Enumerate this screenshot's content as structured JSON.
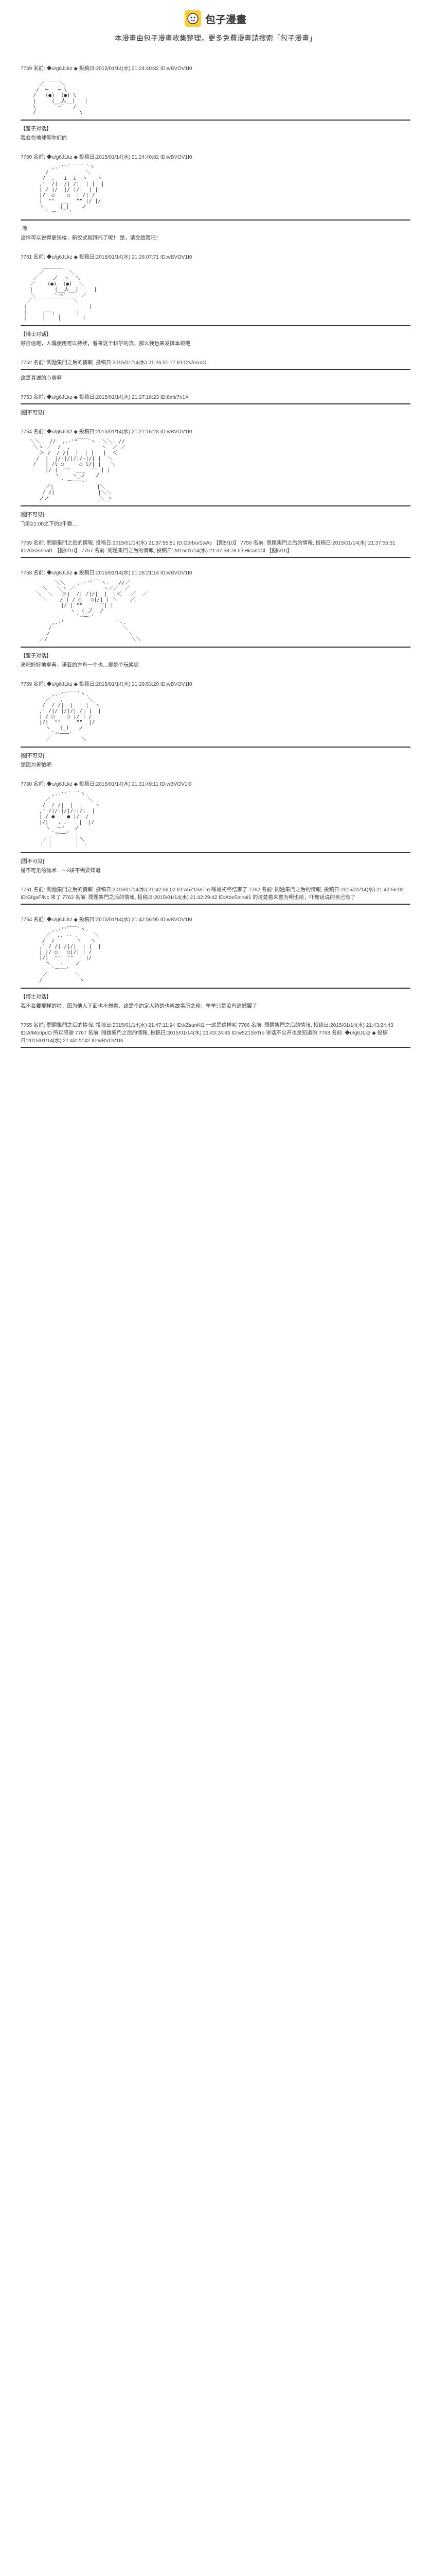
{
  "header": {
    "logo_text": "包子漫畫",
    "subtitle": "本漫畫由包子漫畫收集整理，更多免費漫畫請搜索「包子漫畫」"
  },
  "posts": [
    {
      "meta": "7749 名前: ◆u/g6JLkz ◆ 投稿日:2015/01/14(水) 21:24:40:82 ID:wBVOV1I0",
      "ascii": "         ___\n      ／     ＼\n     /  ─   ─ \\\n    /   (●)  (●) \\\n    |     (__人__)   |\n    \\      `⌒´   /\n    /              \\",
      "dialogue_label": "【蜜子对话】",
      "dialogue": "我会在地球等你们的"
    },
    {
      "meta": "7750 名前: ◆u/g6JLkz ◆ 投稿日:2015/01/14(水) 21:24:40:82 ID:wBVOV1I0",
      "ascii": "          ,.-'\"´ ￣￣ `ヽ\n        /            ＼\n       /  ,   i  i  ヽ   ヽ\n      ,'  /|  /| /|  | |  |\n      | / |/  |/ |/|  | |\n      |/  ○    ○  | /| /\n      |  \"\"  ___  \"\" |/ |/\n      ヽ     |_|    ノ\n        ` ー─── '",
      "dialogue_label": "·嗯·",
      "dialogue": "这样可以说得更快楼，新仪式就拜托了呢！\n是，请交给我吧！"
    },
    {
      "meta": "7751 名前: ◆u/g6JLkz ◆ 投稿日:2015/01/14(水) 21:26:07:71 ID:wBVOV1I0",
      "ascii": "       ＿＿＿＿\n      ／        ＼\n    ／   ＿ノ  ヽ  ＼\n   ／    (●)  (●)  ＼\n   |       (__人__)     |\n   ＼      ` ⌒´     ／\n  ／￣￣￣￣￣￣￣￣＼\n |                    |\n |     ┌──┐       |\n |     │    │       |\n",
      "dialogue_label": "【博士对话】",
      "dialogue": "好自信呢，人偶使用可以持续，看来这个科学的流，那么我也来发挥本领吧"
    },
    {
      "meta": "7752 名前: 問題集門之后的情報, 投稿日:2015/01/14(水) 21:26:51:77 ID:Cry/nsulO",
      "dialogue": "这是真诚的心意啊"
    },
    {
      "meta": "7753 名前: ◆u/g6JLkz ◆ 投稿日:2015/01/14(水) 21:27:16:23 ID:8xh/7n1X",
      "dialogue_label": "[图不可见]"
    },
    {
      "meta": "7754 名前: ◆u/g6JLkz ◆ 投稿日:2015/01/14(水) 21:27:16:23 ID:wBVOV1I0",
      "ascii": "   ＼＼   //  ,.-'\"￣￣`ヽ  ＼＼  //\n    ＼ヽ ／  /  ,          ヽ  ／ ／\n      ＞ /  / /|  |  | |   |  ＜\n     /  |  |/-|/|/|/-|/| |  ＼\n    /   | /l ○     ○ l/| |   ＼\n        |/ |  \"\"  ___  \"\" | |\n           ヽ    ヽ_ノ   ノ\n             ` ー───‐'\n        ／|              |＼\n       / /|              |＼＼\n      ノノ                ＼ ヽ",
      "dialogue_label": "[图不可见]",
      "dialogue": "飞到21:00之下的2千歌…"
    },
    {
      "meta": "7755 名前: 問題集門之后的情報, 投稿日:2015/01/14(水) 21:37:55:51 ID:Gdrbor1wAc\n【图5/10】\n7756 名前: 問題集門之后的情報, 投稿日:2015/01/14(水) 21:37:55:51 ID:AbsSinnal1\n【图5/10】\n7757 名前: 問題集門之后的情報, 投稿日:2015/01/14(水) 21:37:58:78 ID:HicunoCl\n【图5/10】"
    },
    {
      "meta": "7758 名前: ◆u/g6JLkz ◆ 投稿日:2015/01/14(水) 21:28:21:14 ID:wBVOV1I0",
      "ascii": "           ＼＼    ,.-'\"￣`ヽ.   //／\n       ＼   ＼ヽ ／         ヽ／／  ／\n     ＼  ＼   ＞|  /| /|/|  |  |＜   ／  ／\n       ＼    / | / ○   ○|/| | ＼    ／\n             |/ | \"\"  _  \"\"| |\n                ヽ  (_ノ  ノ\n                  `ー─‐'\n          ,.-'                 `-.\n         /                       ＼\n        ノ                         ヽ\n      ／/                           ＼＼",
      "dialogue_label": "【蜜子对话】",
      "dialogue": "来吧好好地拿着，诺亚的方舟一个也…那是个玩笑呢"
    },
    {
      "meta": "7759 名前: ◆u/g6JLkz ◆ 投稿日:2015/01/14(水) 21:29:53:20 ID:wBVOV1I0",
      "ascii": "          ,.-'\"￣￣`ヽ.\n        ／   ,        ＼\n       /  / /|  |  | |  ヽ\n      ,' /|/ |/|/| /| |  |\n      | / ○    ○ |/ | /\n      |/|  \"\"  _  \"\"  |/\n        ヽ   (_)   ノ\n          `ー───'\n        ／          ＼",
      "dialogue_label": "[图不可见]",
      "dialogue": "是因为害怕吧"
    },
    {
      "meta": "7760 名前: ◆u/g6JLkz ◆ 投稿日:2015/01/14(水) 21:31:49:11 ID:wBVOV1I0",
      "ascii": "          ,.-'\"￣￣`ヽ.\n        ／            ＼\n       /  / /|  |  |    ヽ\n      ,' /|/-|/|/-|/|  |\n      | / ●    ● |/| /\n      |/|   , ､    |  |/\n        ヽ  ー'   ノ\n          `ー──'\n       ／｜       ｜＼\n      ｜ ｜       ｜ ｜",
      "dialogue_label": "[图不可见]",
      "dialogue": "是不可见的仙术…一3讲不需要知道"
    },
    {
      "meta": "7761 名前: 問題集門之后的情報, 投稿日:2015/01/14(水) 21:42:56:02 ID:w5Z1SeTro\n嗯是初终结束了\n7762 名前: 問題集門之后的情報, 投稿日:2015/01/14(水) 21:42:56:02 ID:GfgaFfNc\n来了\n7763 名前: 問題集門之后的情報, 投稿日:2015/01/14(水) 21:42:29:42 ID:AbsSinnal1\n的清楚看来整为明也给，吓理话说的自己有了"
    },
    {
      "meta": "7764 名前: ◆u/g6JLkz ◆ 投稿日:2015/01/14(水) 21:42:56:95 ID:wBVOV1I0",
      "ascii": "          ,.-'\"￣￣`ヽ.\n        ／  ,. -- .     ＼\n       /  /       ヽ   ヽ\n      ,' / /| /|/|  | |  |\n      | |/ ○   ○|/| | /\n      |/|  \"\"  \"\"  | |/\n        ヽ   -    ノ\n          `ー──'\n       ／         ＼\n      /            ヽ",
      "dialogue_label": "【博士对话】",
      "dialogue": "我不会要那样的啦，因为他人下面也不想看，这是个约定人待的也听故事所之理，单单只是没有遗憾罢了"
    },
    {
      "meta": "7765 名前: 問題集門之后的情報, 投稿日:2015/01/14(水) 21:47:11:94 ID:kZsunKl1\n一这是这样呢\n7766 名前: 問題集門之后的情報, 投稿日:2015/01/14(水) 21:43:24:43 ID:A/MoripdO\n所以感谢\n7767 名前: 問題集門之后的情報, 投稿日:2015/01/14(水) 21:43:24:43 ID:w5Z1SeTro\n讲话不公开也是知道的\n7768 名前: ◆u/g6JLkz ◆ 投稿日:2015/01/14(水) 21:43:22:42 ID:wBVOV1I0"
    }
  ],
  "colors": {
    "logo_bg": "#ffcc33",
    "text": "#333333",
    "meta": "#444444",
    "divider": "#333333",
    "background": "#ffffff"
  }
}
